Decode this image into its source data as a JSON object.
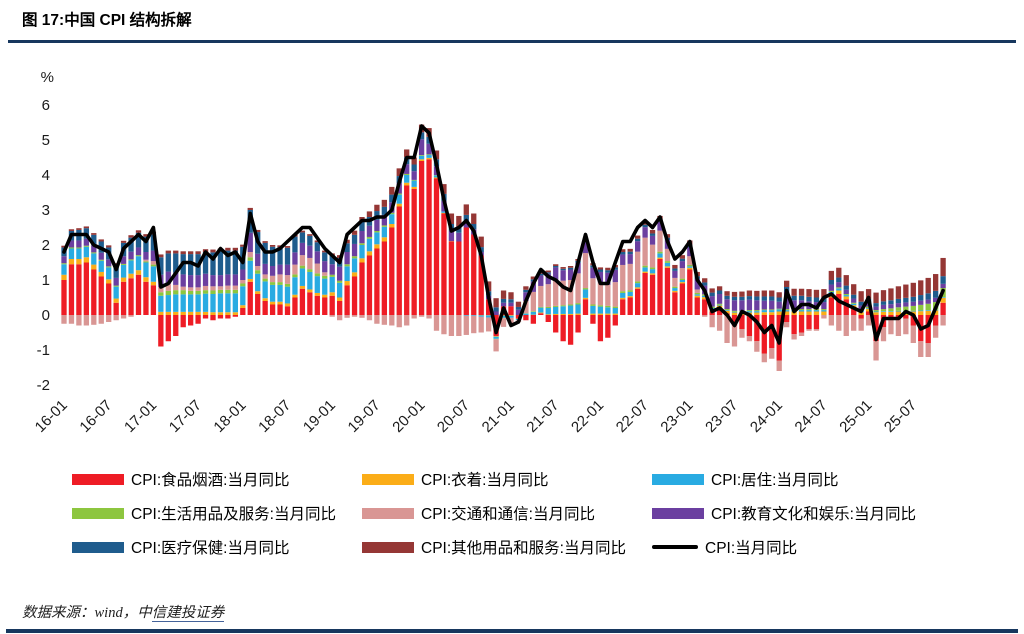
{
  "title": "图 17:中国 CPI 结构拆解",
  "footer": {
    "prefix": "数据来源：wind，中",
    "link": "信建投证券"
  },
  "chart_data": {
    "type": "bar",
    "subtype": "stacked-bar-with-line",
    "unit": "%",
    "ylim": [
      -2,
      6
    ],
    "y_ticks": [
      6,
      5,
      4,
      3,
      2,
      1,
      0,
      -1,
      -2
    ],
    "x_ticks": [
      "16-01",
      "16-07",
      "17-01",
      "17-07",
      "18-01",
      "18-07",
      "19-01",
      "19-07",
      "20-01",
      "20-07",
      "21-01",
      "21-07",
      "22-01",
      "22-07",
      "23-01",
      "23-07",
      "24-01",
      "24-07",
      "25-01",
      "25-07"
    ],
    "x_tick_interval": 6,
    "start_month": "2016-01",
    "end_month": "2025-11",
    "n_months": 119,
    "grid": false,
    "legend_position": "bottom",
    "series": [
      {
        "name": "CPI:食品烟酒:当月同比",
        "color": "#EE1C25",
        "values": [
          1.0,
          1.45,
          1.45,
          1.5,
          1.3,
          1.1,
          0.9,
          0.35,
          0.95,
          1.05,
          1.15,
          0.95,
          0.85,
          -0.9,
          -0.75,
          -0.6,
          -0.35,
          -0.3,
          -0.25,
          -0.1,
          -0.15,
          -0.1,
          -0.1,
          -0.05,
          0.2,
          0.95,
          0.6,
          0.4,
          0.3,
          0.3,
          0.25,
          0.5,
          0.75,
          0.65,
          0.55,
          0.5,
          0.55,
          0.4,
          0.85,
          1.1,
          1.5,
          1.7,
          1.9,
          2.1,
          2.5,
          3.1,
          3.7,
          3.6,
          4.4,
          4.45,
          3.9,
          2.9,
          2.1,
          2.1,
          2.5,
          2.3,
          1.7,
          0.45,
          -0.6,
          0.25,
          0.25,
          -0.1,
          -0.15,
          -0.25,
          0.05,
          -0.2,
          -0.5,
          -0.75,
          -0.85,
          -0.5,
          0.45,
          -0.25,
          -0.75,
          -0.65,
          -0.3,
          0.45,
          0.5,
          0.75,
          1.2,
          1.15,
          1.6,
          1.35,
          0.65,
          0.9,
          1.3,
          0.5,
          0.45,
          0.1,
          0.2,
          0.05,
          -0.3,
          -0.4,
          -0.6,
          -0.75,
          -1.1,
          -0.95,
          -1.3,
          -0.2,
          -0.55,
          -0.5,
          -0.4,
          -0.4,
          0.0,
          0.5,
          0.6,
          0.45,
          0.2,
          -0.1,
          0.1,
          -0.75,
          -0.35,
          -0.1,
          -0.1,
          -0.1,
          -0.3,
          -0.75,
          -0.8,
          -0.3,
          0.35
        ]
      },
      {
        "name": "CPI:衣着:当月同比",
        "color": "#FBAD18",
        "values": [
          0.15,
          0.15,
          0.15,
          0.15,
          0.14,
          0.13,
          0.12,
          0.12,
          0.12,
          0.13,
          0.13,
          0.13,
          0.1,
          0.09,
          0.09,
          0.09,
          0.09,
          0.09,
          0.09,
          0.09,
          0.08,
          0.08,
          0.08,
          0.08,
          0.08,
          0.08,
          0.08,
          0.08,
          0.08,
          0.08,
          0.08,
          0.08,
          0.08,
          0.08,
          0.08,
          0.08,
          0.1,
          0.1,
          0.12,
          0.12,
          0.12,
          0.12,
          0.12,
          0.12,
          0.1,
          0.08,
          0.08,
          0.06,
          0.05,
          0.04,
          0.03,
          0.02,
          0.01,
          0.0,
          0.0,
          0.0,
          -0.01,
          -0.01,
          -0.02,
          -0.02,
          -0.02,
          -0.01,
          0.0,
          0.01,
          0.02,
          0.02,
          0.03,
          0.03,
          0.03,
          0.04,
          0.04,
          0.04,
          0.04,
          0.04,
          0.04,
          0.04,
          0.04,
          0.04,
          0.04,
          0.04,
          0.04,
          0.04,
          0.04,
          0.04,
          0.05,
          0.05,
          0.06,
          0.06,
          0.07,
          0.07,
          0.07,
          0.07,
          0.07,
          0.07,
          0.08,
          0.08,
          0.1,
          0.1,
          0.1,
          0.1,
          0.1,
          0.1,
          0.1,
          0.1,
          0.1,
          0.08,
          0.08,
          0.08,
          0.08,
          0.08,
          0.09,
          0.09,
          0.1,
          0.1,
          0.1,
          0.11,
          0.12,
          0.13,
          0.14
        ]
      },
      {
        "name": "CPI:居住:当月同比",
        "color": "#29ABE2",
        "values": [
          0.3,
          0.3,
          0.3,
          0.3,
          0.32,
          0.32,
          0.34,
          0.34,
          0.36,
          0.38,
          0.4,
          0.42,
          0.44,
          0.46,
          0.48,
          0.5,
          0.5,
          0.5,
          0.5,
          0.52,
          0.52,
          0.54,
          0.54,
          0.54,
          0.54,
          0.52,
          0.5,
          0.48,
          0.48,
          0.48,
          0.48,
          0.5,
          0.5,
          0.5,
          0.48,
          0.46,
          0.44,
          0.42,
          0.42,
          0.4,
          0.38,
          0.36,
          0.34,
          0.3,
          0.28,
          0.26,
          0.22,
          0.18,
          0.1,
          0.08,
          0.06,
          0.04,
          0.0,
          0.0,
          -0.02,
          -0.02,
          -0.04,
          -0.06,
          -0.06,
          -0.06,
          -0.06,
          -0.04,
          0.04,
          0.08,
          0.14,
          0.18,
          0.2,
          0.22,
          0.24,
          0.26,
          0.24,
          0.22,
          0.2,
          0.18,
          0.16,
          0.14,
          0.12,
          0.12,
          0.12,
          0.12,
          0.12,
          0.1,
          0.08,
          0.06,
          0.04,
          0.04,
          0.04,
          0.04,
          0.02,
          0.02,
          0.02,
          0.02,
          0.04,
          0.04,
          0.06,
          0.06,
          0.06,
          0.04,
          0.04,
          0.04,
          0.04,
          0.04,
          0.04,
          0.06,
          0.06,
          0.04,
          0.04,
          0.04,
          0.02,
          0.02,
          0.02,
          0.02,
          0.02,
          0.02,
          0.02,
          0.02,
          0.02,
          0.02,
          0.02
        ]
      },
      {
        "name": "CPI:生活用品及服务:当月同比",
        "color": "#8DC63F",
        "values": [
          0.03,
          0.03,
          0.03,
          0.03,
          0.03,
          0.03,
          0.03,
          0.03,
          0.03,
          0.03,
          0.03,
          0.03,
          0.05,
          0.1,
          0.12,
          0.12,
          0.12,
          0.1,
          0.1,
          0.1,
          0.1,
          0.1,
          0.1,
          0.1,
          0.08,
          0.1,
          0.1,
          0.08,
          0.08,
          0.08,
          0.08,
          0.08,
          0.08,
          0.08,
          0.08,
          0.08,
          0.06,
          0.06,
          0.06,
          0.06,
          0.05,
          0.05,
          0.04,
          0.04,
          0.04,
          0.03,
          0.03,
          0.02,
          0.02,
          0.02,
          0.01,
          0.0,
          0.0,
          0.0,
          0.0,
          0.0,
          0.0,
          0.0,
          -0.01,
          -0.01,
          0.0,
          0.0,
          0.01,
          0.02,
          0.02,
          0.03,
          0.03,
          0.03,
          0.03,
          0.04,
          0.04,
          0.04,
          0.04,
          0.04,
          0.04,
          0.05,
          0.05,
          0.05,
          0.05,
          0.05,
          0.05,
          0.05,
          0.04,
          0.04,
          0.04,
          0.04,
          0.04,
          0.04,
          0.03,
          0.03,
          0.03,
          0.03,
          0.03,
          0.03,
          0.02,
          0.02,
          0.02,
          0.03,
          0.03,
          0.03,
          0.03,
          0.03,
          0.03,
          0.03,
          0.03,
          0.03,
          0.03,
          0.03,
          0.04,
          0.04,
          0.06,
          0.08,
          0.1,
          0.12,
          0.14,
          0.16,
          0.18,
          0.22,
          0.26
        ]
      },
      {
        "name": "CPI:交通和通信:当月同比",
        "color": "#D99694",
        "values": [
          -0.25,
          -0.25,
          -0.3,
          -0.3,
          -0.28,
          -0.25,
          -0.2,
          -0.15,
          -0.1,
          -0.05,
          0.0,
          0.05,
          0.1,
          0.15,
          0.2,
          0.15,
          0.1,
          0.1,
          0.1,
          0.12,
          0.12,
          0.1,
          0.12,
          0.12,
          0.1,
          0.15,
          0.12,
          0.12,
          0.18,
          0.22,
          0.25,
          0.28,
          0.3,
          0.32,
          0.28,
          0.1,
          -0.05,
          -0.15,
          -0.08,
          -0.05,
          -0.08,
          -0.15,
          -0.25,
          -0.28,
          -0.3,
          -0.35,
          -0.3,
          -0.1,
          -0.05,
          -0.1,
          -0.45,
          -0.55,
          -0.6,
          -0.6,
          -0.55,
          -0.5,
          -0.45,
          -0.4,
          -0.35,
          -0.25,
          -0.15,
          -0.05,
          0.35,
          0.55,
          0.6,
          0.65,
          0.75,
          0.7,
          0.7,
          0.85,
          1.0,
          0.75,
          0.65,
          0.6,
          0.7,
          0.75,
          0.75,
          0.85,
          0.8,
          0.65,
          0.6,
          0.35,
          0.25,
          0.3,
          0.25,
          0.1,
          -0.05,
          -0.35,
          -0.45,
          -0.8,
          -0.6,
          -0.25,
          -0.15,
          -0.3,
          -0.25,
          -0.3,
          -0.3,
          -0.15,
          -0.15,
          -0.1,
          -0.05,
          -0.05,
          -0.1,
          -0.3,
          -0.45,
          -0.6,
          -0.45,
          -0.35,
          -0.3,
          -0.55,
          -0.4,
          -0.45,
          -0.5,
          -0.45,
          -0.5,
          -0.45,
          -0.4,
          -0.35,
          -0.3
        ]
      },
      {
        "name": "CPI:教育文化和娱乐:当月同比",
        "color": "#6B3FA0",
        "values": [
          0.2,
          0.2,
          0.2,
          0.2,
          0.2,
          0.2,
          0.2,
          0.22,
          0.22,
          0.22,
          0.22,
          0.22,
          0.3,
          0.35,
          0.35,
          0.35,
          0.35,
          0.35,
          0.35,
          0.35,
          0.32,
          0.32,
          0.32,
          0.32,
          0.3,
          0.55,
          0.35,
          0.3,
          0.28,
          0.28,
          0.3,
          0.35,
          0.35,
          0.35,
          0.35,
          0.32,
          0.3,
          0.4,
          0.35,
          0.35,
          0.35,
          0.32,
          0.32,
          0.3,
          0.3,
          0.3,
          0.28,
          0.25,
          0.45,
          0.3,
          0.25,
          0.3,
          0.3,
          0.25,
          0.2,
          0.15,
          0.1,
          0.1,
          0.1,
          0.1,
          0.1,
          0.15,
          0.25,
          0.3,
          0.3,
          0.3,
          0.35,
          0.3,
          0.3,
          0.3,
          0.3,
          0.3,
          0.3,
          0.35,
          0.35,
          0.3,
          0.28,
          0.3,
          0.3,
          0.25,
          0.25,
          0.25,
          0.2,
          0.2,
          0.25,
          0.3,
          0.25,
          0.3,
          0.28,
          0.28,
          0.3,
          0.3,
          0.3,
          0.28,
          0.25,
          0.25,
          0.2,
          0.5,
          0.25,
          0.25,
          0.22,
          0.2,
          0.2,
          0.18,
          0.15,
          0.12,
          0.12,
          0.12,
          0.12,
          0.1,
          0.12,
          0.12,
          0.12,
          0.12,
          0.12,
          0.12,
          0.12,
          0.12,
          0.12
        ]
      },
      {
        "name": "CPI:医疗保健:当月同比",
        "color": "#1F5C8D",
        "values": [
          0.25,
          0.27,
          0.3,
          0.3,
          0.3,
          0.32,
          0.34,
          0.36,
          0.38,
          0.4,
          0.42,
          0.44,
          0.46,
          0.5,
          0.52,
          0.55,
          0.58,
          0.6,
          0.6,
          0.62,
          0.65,
          0.68,
          0.68,
          0.68,
          0.65,
          0.65,
          0.62,
          0.6,
          0.55,
          0.5,
          0.48,
          0.45,
          0.3,
          0.28,
          0.26,
          0.25,
          0.25,
          0.25,
          0.25,
          0.26,
          0.26,
          0.25,
          0.25,
          0.23,
          0.22,
          0.2,
          0.2,
          0.19,
          0.2,
          0.2,
          0.2,
          0.2,
          0.19,
          0.18,
          0.16,
          0.15,
          0.14,
          0.13,
          0.12,
          0.11,
          0.1,
          0.08,
          0.07,
          0.06,
          0.05,
          0.04,
          0.04,
          0.04,
          0.05,
          0.06,
          0.06,
          0.07,
          0.07,
          0.07,
          0.07,
          0.07,
          0.07,
          0.07,
          0.07,
          0.07,
          0.07,
          0.07,
          0.07,
          0.07,
          0.08,
          0.08,
          0.09,
          0.1,
          0.1,
          0.1,
          0.1,
          0.1,
          0.1,
          0.11,
          0.12,
          0.12,
          0.12,
          0.13,
          0.13,
          0.13,
          0.13,
          0.13,
          0.13,
          0.13,
          0.13,
          0.12,
          0.11,
          0.11,
          0.1,
          0.1,
          0.1,
          0.11,
          0.12,
          0.13,
          0.14,
          0.16,
          0.18,
          0.2,
          0.22
        ]
      },
      {
        "name": "CPI:其他用品和服务:当月同比",
        "color": "#953735",
        "values": [
          0.05,
          0.05,
          0.05,
          0.05,
          0.05,
          0.06,
          0.06,
          0.06,
          0.06,
          0.07,
          0.07,
          0.07,
          0.08,
          0.08,
          0.08,
          0.08,
          0.08,
          0.08,
          0.08,
          0.08,
          0.08,
          0.08,
          0.08,
          0.08,
          0.06,
          0.06,
          0.06,
          0.05,
          0.05,
          0.05,
          0.05,
          0.05,
          0.05,
          0.05,
          0.05,
          0.05,
          0.06,
          0.08,
          0.1,
          0.12,
          0.14,
          0.16,
          0.18,
          0.2,
          0.22,
          0.22,
          0.22,
          0.2,
          0.22,
          0.25,
          0.25,
          0.28,
          0.3,
          0.3,
          0.3,
          0.3,
          0.3,
          0.28,
          0.26,
          0.24,
          0.2,
          0.15,
          0.1,
          0.08,
          0.06,
          0.05,
          0.05,
          0.05,
          0.05,
          0.05,
          0.06,
          0.06,
          0.06,
          0.07,
          0.07,
          0.08,
          0.08,
          0.09,
          0.09,
          0.1,
          0.1,
          0.1,
          0.1,
          0.1,
          0.12,
          0.12,
          0.12,
          0.12,
          0.12,
          0.13,
          0.14,
          0.15,
          0.16,
          0.16,
          0.17,
          0.17,
          0.15,
          0.18,
          0.2,
          0.2,
          0.22,
          0.22,
          0.24,
          0.26,
          0.28,
          0.3,
          0.3,
          0.3,
          0.28,
          0.3,
          0.32,
          0.34,
          0.36,
          0.38,
          0.4,
          0.42,
          0.44,
          0.48,
          0.52
        ]
      }
    ],
    "line": {
      "name": "CPI:当月同比",
      "color": "#000000",
      "values": [
        1.8,
        2.3,
        2.3,
        2.3,
        2.0,
        1.9,
        1.8,
        1.3,
        1.9,
        2.1,
        2.3,
        2.1,
        2.5,
        0.8,
        0.9,
        1.2,
        1.5,
        1.5,
        1.4,
        1.8,
        1.6,
        1.9,
        1.7,
        1.8,
        1.5,
        2.9,
        2.1,
        1.8,
        1.8,
        1.9,
        2.1,
        2.3,
        2.5,
        2.5,
        2.2,
        1.9,
        1.7,
        1.5,
        2.3,
        2.5,
        2.7,
        2.7,
        2.8,
        2.8,
        3.0,
        3.8,
        4.5,
        4.5,
        5.4,
        5.2,
        4.3,
        3.3,
        2.4,
        2.5,
        2.7,
        2.4,
        1.7,
        0.5,
        -0.5,
        0.2,
        -0.3,
        -0.2,
        0.4,
        0.9,
        1.3,
        1.1,
        1.0,
        0.8,
        0.7,
        1.5,
        2.3,
        1.5,
        0.9,
        0.9,
        1.5,
        2.1,
        2.1,
        2.5,
        2.7,
        2.5,
        2.8,
        2.1,
        1.6,
        1.8,
        2.1,
        1.0,
        0.7,
        0.1,
        0.2,
        0.0,
        -0.3,
        0.1,
        0.0,
        -0.2,
        -0.5,
        -0.3,
        -0.8,
        0.7,
        0.1,
        0.3,
        0.3,
        0.2,
        0.5,
        0.6,
        0.4,
        0.3,
        0.2,
        0.1,
        0.5,
        -0.7,
        -0.1,
        -0.1,
        -0.1,
        0.1,
        0.0,
        -0.4,
        -0.3,
        0.2,
        0.7
      ]
    }
  }
}
